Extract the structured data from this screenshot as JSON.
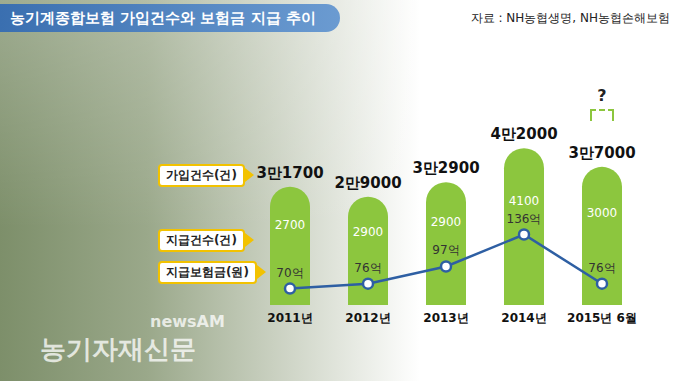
{
  "chart_data": {
    "type": "bar",
    "title": "농기계종합보험 가입건수와 보험금 지급 추이",
    "source": "자료 : NH농협생명, NH농협손해보험",
    "watermark": [
      "newsAM",
      "농기자재신문"
    ],
    "annotations": [
      "?"
    ],
    "categories": [
      "2011년",
      "2012년",
      "2013년",
      "2014년",
      "2015년 6월"
    ],
    "series": [
      {
        "name": "가입건수(건)",
        "type": "bar",
        "color": "#8cc63e",
        "values": [
          31700,
          29000,
          32900,
          42000,
          37000
        ],
        "value_labels": [
          "3만1700",
          "2만9000",
          "3만2900",
          "4만2000",
          "3만7000"
        ]
      },
      {
        "name": "지급건수(건)",
        "type": "bar_label",
        "color": "#ffffff",
        "values": [
          2700,
          2900,
          2900,
          4100,
          3000
        ]
      },
      {
        "name": "지급보험금(원)",
        "type": "line",
        "axis": "y2",
        "color": "#2e5fa3",
        "marker": "circle",
        "values": [
          70,
          76,
          97,
          136,
          76
        ],
        "value_labels": [
          "70억",
          "76억",
          "97억",
          "136억",
          "76억"
        ]
      }
    ],
    "ylim": [
      0,
      45000
    ],
    "yticks": [
      0,
      45000
    ],
    "y2lim": [
      50,
      255
    ],
    "y2ticks": [
      50,
      255
    ],
    "data_labels": true,
    "tick_labels": "x",
    "grid": false
  }
}
